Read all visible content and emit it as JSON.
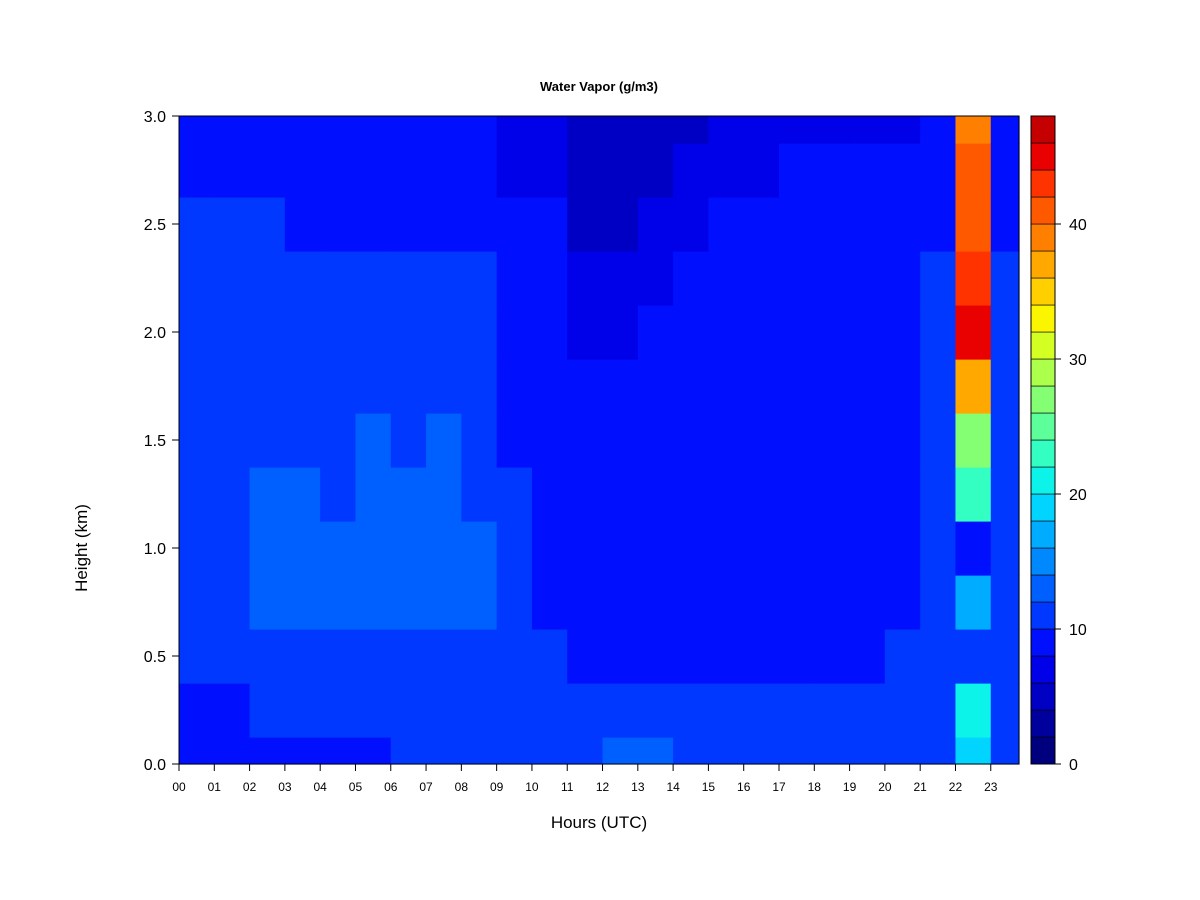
{
  "chart_data": {
    "type": "heatmap",
    "title": "Water Vapor (g/m3)",
    "xlabel": "Hours (UTC)",
    "ylabel": "Height (km)",
    "x_ticks": [
      "00",
      "01",
      "02",
      "03",
      "04",
      "05",
      "06",
      "07",
      "08",
      "09",
      "10",
      "11",
      "12",
      "13",
      "14",
      "15",
      "16",
      "17",
      "18",
      "19",
      "20",
      "21",
      "22",
      "23"
    ],
    "xlim": [
      0,
      23.8
    ],
    "ylim": [
      0.0,
      3.0
    ],
    "y_ticks": [
      "0.0",
      "0.5",
      "1.0",
      "1.5",
      "2.0",
      "2.5",
      "3.0"
    ],
    "y_tick_values": [
      0.0,
      0.5,
      1.0,
      1.5,
      2.0,
      2.5,
      3.0
    ],
    "colorbar": {
      "range": [
        0,
        48
      ],
      "levels": [
        0,
        2,
        4,
        6,
        8,
        10,
        12,
        14,
        16,
        18,
        20,
        22,
        24,
        26,
        28,
        30,
        32,
        34,
        36,
        38,
        40,
        42,
        44,
        46,
        48
      ],
      "ticks": [
        "0",
        "10",
        "20",
        "30",
        "40"
      ],
      "tick_values": [
        0,
        10,
        20,
        30,
        40
      ],
      "colors": [
        "#00007f",
        "#00009c",
        "#0000c4",
        "#0000e9",
        "#0010ff",
        "#0038ff",
        "#0060ff",
        "#0088ff",
        "#00acff",
        "#00d4ff",
        "#0cf4ea",
        "#34ffc2",
        "#5cff9a",
        "#84ff73",
        "#acff4b",
        "#d4ff23",
        "#fcf500",
        "#ffcf00",
        "#ffa800",
        "#ff8000",
        "#ff5900",
        "#ff3300",
        "#e90000",
        "#c40000",
        "#9c0000"
      ]
    },
    "grid_x_hours": [
      0,
      1,
      2,
      3,
      4,
      5,
      6,
      7,
      8,
      9,
      10,
      11,
      12,
      13,
      14,
      15,
      16,
      17,
      18,
      19,
      20,
      21,
      22,
      23
    ],
    "heights_km": [
      0.0,
      0.25,
      0.5,
      0.75,
      1.0,
      1.25,
      1.5,
      1.75,
      2.0,
      2.25,
      2.5,
      2.75,
      3.0
    ],
    "values": [
      [
        8,
        9,
        10,
        11,
        11,
        11,
        11,
        11,
        11,
        10,
        10,
        9,
        8
      ],
      [
        8,
        9,
        10,
        11,
        11,
        11,
        11,
        11,
        11,
        10,
        10,
        9,
        8
      ],
      [
        8,
        10,
        10,
        12,
        12,
        12,
        11,
        11,
        10,
        10,
        10,
        9,
        8
      ],
      [
        8,
        10,
        10,
        12,
        12,
        12,
        11,
        11,
        10,
        10,
        9,
        9,
        8
      ],
      [
        8,
        10,
        10,
        12,
        12,
        11,
        11,
        11,
        11,
        10,
        9,
        9,
        8
      ],
      [
        9,
        10,
        10,
        12,
        13,
        12,
        12,
        11,
        10,
        10,
        9,
        9,
        8
      ],
      [
        10,
        10,
        10,
        12,
        13,
        12,
        11,
        11,
        10,
        10,
        9,
        9,
        8
      ],
      [
        10,
        10,
        11,
        13,
        13,
        13,
        12,
        11,
        10,
        10,
        9,
        9,
        8
      ],
      [
        10,
        10,
        11,
        12,
        12,
        11,
        11,
        11,
        10,
        10,
        9,
        9,
        8
      ],
      [
        11,
        11,
        10,
        10,
        10,
        10,
        9,
        9,
        9,
        8,
        8,
        7,
        6
      ],
      [
        11,
        11,
        10,
        9,
        9,
        9,
        9,
        9,
        9,
        8,
        8,
        7,
        6
      ],
      [
        11,
        11,
        9,
        8,
        8,
        8,
        8,
        8,
        7,
        6,
        5,
        5,
        5
      ],
      [
        12,
        10,
        9,
        8,
        8,
        8,
        8,
        8,
        7,
        6,
        5,
        5,
        5
      ],
      [
        12,
        10,
        9,
        8,
        8,
        8,
        8,
        8,
        8,
        7,
        6,
        5,
        5
      ],
      [
        11,
        10,
        9,
        8,
        8,
        8,
        8,
        8,
        8,
        8,
        7,
        6,
        5
      ],
      [
        11,
        10,
        9,
        8,
        8,
        8,
        8,
        8,
        8,
        8,
        8,
        7,
        6
      ],
      [
        10,
        10,
        9,
        8,
        8,
        8,
        8,
        8,
        8,
        8,
        8,
        7,
        6
      ],
      [
        10,
        10,
        9,
        9,
        9,
        9,
        9,
        9,
        9,
        9,
        9,
        8,
        7
      ],
      [
        10,
        10,
        9,
        9,
        9,
        9,
        9,
        9,
        9,
        9,
        8,
        8,
        7
      ],
      [
        10,
        10,
        9,
        9,
        9,
        9,
        9,
        9,
        9,
        9,
        8,
        8,
        7
      ],
      [
        10,
        10,
        10,
        9,
        9,
        9,
        9,
        9,
        9,
        9,
        8,
        8,
        7
      ],
      [
        10,
        10,
        10,
        10,
        10,
        10,
        10,
        10,
        10,
        10,
        9,
        8,
        8
      ],
      [
        18,
        20,
        10,
        16,
        8,
        22,
        26,
        36,
        44,
        42,
        40,
        40,
        38
      ],
      [
        11,
        10,
        10,
        10,
        10,
        10,
        10,
        10,
        10,
        10,
        9,
        9,
        9
      ]
    ]
  }
}
